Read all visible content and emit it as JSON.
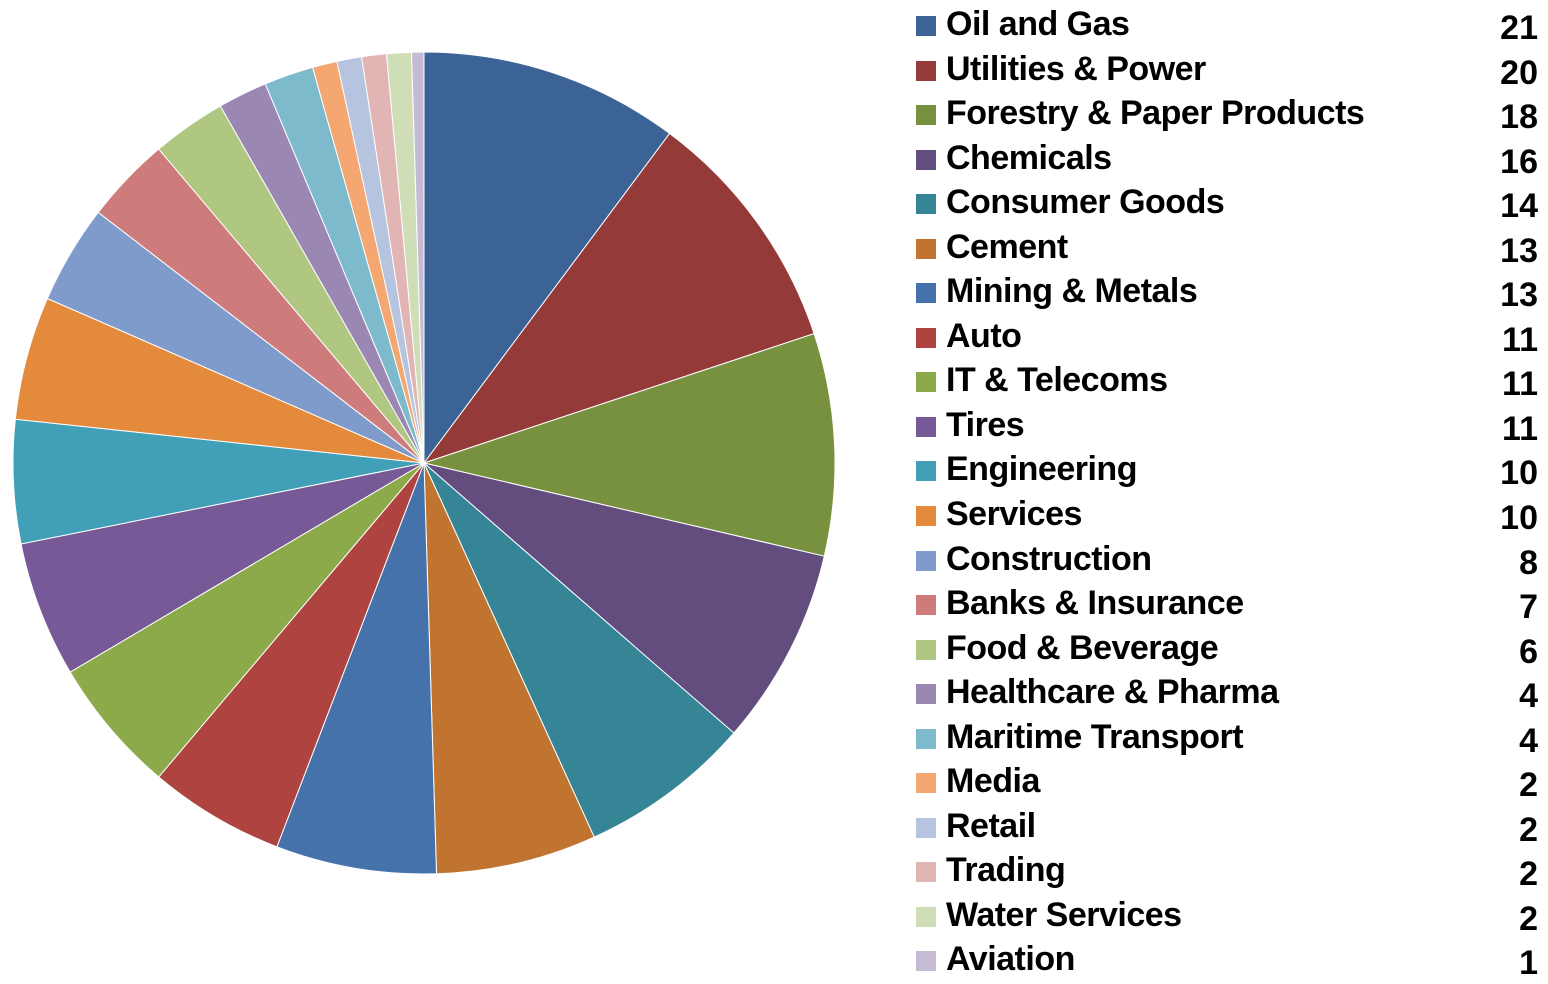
{
  "chart_data": {
    "type": "pie",
    "start_angle": "12 o'clock",
    "direction": "clockwise",
    "legend_position": "right",
    "slices": [
      {
        "label": "Oil and Gas",
        "value": 21,
        "value_label": "21",
        "color": "#3B6396"
      },
      {
        "label": "Utilities & Power",
        "value": 20,
        "value_label": "20",
        "color": "#943B3A"
      },
      {
        "label": "Forestry & Paper Products",
        "value": 18,
        "value_label": "18",
        "color": "#78913F"
      },
      {
        "label": "Chemicals",
        "value": 16,
        "value_label": "16",
        "color": "#634C7E"
      },
      {
        "label": "Consumer Goods",
        "value": 14,
        "value_label": "14",
        "color": "#358596"
      },
      {
        "label": "Cement",
        "value": 13,
        "value_label": "13",
        "color": "#C07430"
      },
      {
        "label": "Mining & Metals",
        "value": 13,
        "value_label": "13",
        "color": "#4672AB"
      },
      {
        "label": "Auto",
        "value": 11,
        "value_label": "11",
        "color": "#AE4340"
      },
      {
        "label": "IT & Telecoms",
        "value": 11,
        "value_label": "11",
        "color": "#8CAA4A"
      },
      {
        "label": "Tires",
        "value": 11,
        "value_label": "11",
        "color": "#765996"
      },
      {
        "label": "Engineering",
        "value": 10,
        "value_label": "10",
        "color": "#41A0B8"
      },
      {
        "label": "Services",
        "value": 10,
        "value_label": "10",
        "color": "#E48A3C"
      },
      {
        "label": "Construction",
        "value": 8,
        "value_label": "8",
        "color": "#7F9BCB"
      },
      {
        "label": "Banks & Insurance",
        "value": 7,
        "value_label": "7",
        "color": "#CD7C7B"
      },
      {
        "label": "Food & Beverage",
        "value": 6,
        "value_label": "6",
        "color": "#AFC780"
      },
      {
        "label": "Healthcare & Pharma",
        "value": 4,
        "value_label": "4",
        "color": "#9A88B3"
      },
      {
        "label": "Maritime Transport",
        "value": 4,
        "value_label": "4",
        "color": "#7CBACC"
      },
      {
        "label": "Media",
        "value": 2,
        "value_label": "2",
        "color": "#F5A771"
      },
      {
        "label": "Retail",
        "value": 2,
        "value_label": "2",
        "color": "#B6C4E0"
      },
      {
        "label": "Trading",
        "value": 2,
        "value_label": "2",
        "color": "#E1B5B4"
      },
      {
        "label": "Water Services",
        "value": 2,
        "value_label": "2",
        "color": "#D0DEB7"
      },
      {
        "label": "Aviation",
        "value": 1,
        "value_label": "1",
        "color": "#C6BBD4"
      }
    ]
  }
}
